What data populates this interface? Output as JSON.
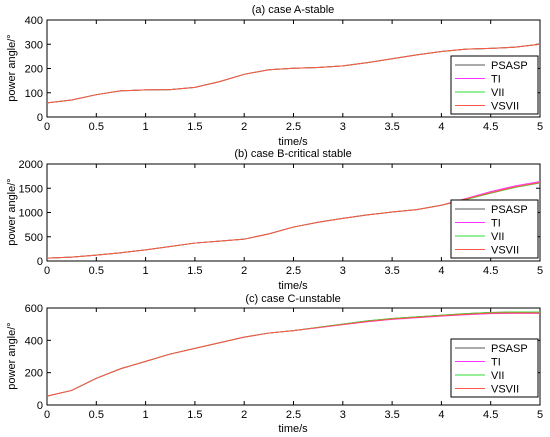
{
  "legend_placement": "bottom-right",
  "chart_data": [
    {
      "type": "line",
      "title": "(a) case A-stable",
      "xlabel": "time/s",
      "ylabel": "power angle/°",
      "xlim": [
        0,
        5
      ],
      "ylim": [
        0,
        400
      ],
      "xticks": [
        "0",
        "0.5",
        "1",
        "1.5",
        "2",
        "2.5",
        "3",
        "3.5",
        "4",
        "4.5",
        "5"
      ],
      "yticks": [
        "0",
        "100",
        "200",
        "300",
        "400"
      ],
      "x": [
        0,
        0.25,
        0.5,
        0.75,
        1,
        1.25,
        1.5,
        1.75,
        2,
        2.25,
        2.5,
        2.75,
        3,
        3.25,
        3.5,
        3.75,
        4,
        4.25,
        4.5,
        4.75,
        5
      ],
      "series": [
        {
          "name": "PSASP",
          "color": "#555555",
          "values": [
            58,
            70,
            92,
            108,
            112,
            113,
            122,
            146,
            176,
            195,
            201,
            204,
            211,
            224,
            240,
            256,
            270,
            280,
            283,
            288,
            300
          ]
        },
        {
          "name": "TI",
          "color": "#ff33ff",
          "values": [
            58,
            70,
            92,
            108,
            112,
            113,
            122,
            146,
            176,
            195,
            201,
            204,
            211,
            224,
            240,
            256,
            270,
            280,
            283,
            288,
            300
          ]
        },
        {
          "name": "VII",
          "color": "#33dd33",
          "values": [
            58,
            70,
            92,
            108,
            112,
            113,
            122,
            146,
            176,
            195,
            201,
            204,
            211,
            224,
            240,
            256,
            270,
            280,
            283,
            288,
            300
          ]
        },
        {
          "name": "VSVII",
          "color": "#ff5544",
          "values": [
            58,
            70,
            92,
            108,
            112,
            113,
            122,
            146,
            176,
            195,
            201,
            204,
            211,
            224,
            240,
            256,
            270,
            280,
            283,
            288,
            300
          ]
        }
      ]
    },
    {
      "type": "line",
      "title": "(b) case B-critical stable",
      "xlabel": "time/s",
      "ylabel": "power angle/°",
      "xlim": [
        0,
        5
      ],
      "ylim": [
        0,
        2000
      ],
      "xticks": [
        "0",
        "0.5",
        "1",
        "1.5",
        "2",
        "2.5",
        "3",
        "3.5",
        "4",
        "4.5",
        "5"
      ],
      "yticks": [
        "0",
        "500",
        "1000",
        "1500",
        "2000"
      ],
      "x": [
        0,
        0.25,
        0.5,
        0.75,
        1,
        1.25,
        1.5,
        1.75,
        2,
        2.25,
        2.5,
        2.75,
        3,
        3.25,
        3.5,
        3.75,
        4,
        4.25,
        4.5,
        4.75,
        5
      ],
      "series": [
        {
          "name": "PSASP",
          "color": "#555555",
          "values": [
            60,
            80,
            120,
            170,
            230,
            300,
            370,
            410,
            450,
            560,
            700,
            800,
            880,
            950,
            1010,
            1060,
            1150,
            1270,
            1400,
            1520,
            1610
          ]
        },
        {
          "name": "TI",
          "color": "#ff33ff",
          "values": [
            60,
            80,
            120,
            170,
            230,
            300,
            370,
            410,
            450,
            560,
            700,
            800,
            880,
            950,
            1010,
            1060,
            1150,
            1290,
            1430,
            1550,
            1640
          ]
        },
        {
          "name": "VII",
          "color": "#33dd33",
          "values": [
            60,
            80,
            120,
            170,
            230,
            300,
            370,
            410,
            450,
            560,
            700,
            800,
            880,
            950,
            1010,
            1060,
            1150,
            1270,
            1400,
            1520,
            1610
          ]
        },
        {
          "name": "VSVII",
          "color": "#ff5544",
          "values": [
            60,
            80,
            120,
            170,
            230,
            300,
            370,
            410,
            450,
            560,
            700,
            800,
            880,
            950,
            1010,
            1060,
            1150,
            1280,
            1410,
            1530,
            1620
          ]
        }
      ]
    },
    {
      "type": "line",
      "title": "(c) case C-unstable",
      "xlabel": "time/s",
      "ylabel": "power angle/°",
      "xlim": [
        0,
        5
      ],
      "ylim": [
        0,
        600
      ],
      "xticks": [
        "0",
        "0.5",
        "1",
        "1.5",
        "2",
        "2.5",
        "3",
        "3.5",
        "4",
        "4.5",
        "5"
      ],
      "yticks": [
        "0",
        "200",
        "400",
        "600"
      ],
      "x": [
        0,
        0.25,
        0.5,
        0.75,
        1,
        1.25,
        1.5,
        1.75,
        2,
        2.25,
        2.5,
        2.75,
        3,
        3.25,
        3.5,
        3.75,
        4,
        4.25,
        4.5,
        4.75,
        5
      ],
      "series": [
        {
          "name": "PSASP",
          "color": "#555555",
          "values": [
            55,
            90,
            165,
            225,
            270,
            315,
            350,
            385,
            420,
            445,
            460,
            480,
            500,
            520,
            535,
            545,
            555,
            565,
            572,
            575,
            575
          ]
        },
        {
          "name": "TI",
          "color": "#ff33ff",
          "values": [
            55,
            90,
            165,
            225,
            270,
            315,
            350,
            385,
            420,
            445,
            460,
            478,
            497,
            515,
            530,
            540,
            550,
            558,
            565,
            567,
            567
          ]
        },
        {
          "name": "VII",
          "color": "#33dd33",
          "values": [
            55,
            90,
            165,
            225,
            270,
            315,
            350,
            385,
            420,
            445,
            460,
            480,
            500,
            520,
            535,
            545,
            555,
            565,
            572,
            575,
            575
          ]
        },
        {
          "name": "VSVII",
          "color": "#ff5544",
          "values": [
            55,
            90,
            165,
            225,
            270,
            315,
            350,
            385,
            420,
            445,
            460,
            479,
            498,
            517,
            532,
            542,
            552,
            561,
            568,
            570,
            570
          ]
        }
      ]
    }
  ]
}
